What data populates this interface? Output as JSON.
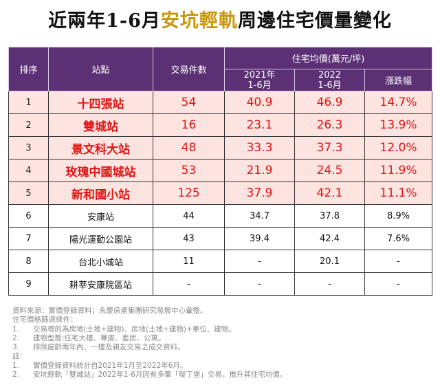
{
  "title": {
    "prefix": "近兩年1-6月",
    "highlight": "安坑輕軌",
    "suffix": "周邊住宅價量變化"
  },
  "table": {
    "headers": {
      "rank": "排序",
      "station": "站點",
      "transactions": "交易件數",
      "price_group": "住宅均價(萬元/坪)",
      "year1_a": "2021年",
      "year1_b": "1-6月",
      "year2_a": "2022",
      "year2_b": "1-6月",
      "change": "漲跌幅"
    },
    "rows": [
      {
        "rank": "1",
        "station": "十四張站",
        "count": "54",
        "p2021": "40.9",
        "p2022": "46.9",
        "change": "14.7%"
      },
      {
        "rank": "2",
        "station": "雙城站",
        "count": "16",
        "p2021": "23.1",
        "p2022": "26.3",
        "change": "13.9%"
      },
      {
        "rank": "3",
        "station": "景文科大站",
        "count": "48",
        "p2021": "33.3",
        "p2022": "37.3",
        "change": "12.0%"
      },
      {
        "rank": "4",
        "station": "玫瑰中國城站",
        "count": "53",
        "p2021": "21.9",
        "p2022": "24.5",
        "change": "11.9%"
      },
      {
        "rank": "5",
        "station": "新和國小站",
        "count": "125",
        "p2021": "37.9",
        "p2022": "42.1",
        "change": "11.1%"
      },
      {
        "rank": "6",
        "station": "安康站",
        "count": "44",
        "p2021": "34.7",
        "p2022": "37.8",
        "change": "8.9%"
      },
      {
        "rank": "7",
        "station": "陽光運動公園站",
        "count": "43",
        "p2021": "39.4",
        "p2022": "42.4",
        "change": "7.6%"
      },
      {
        "rank": "8",
        "station": "台北小城站",
        "count": "11",
        "p2021": "-",
        "p2022": "20.1",
        "change": "-"
      },
      {
        "rank": "9",
        "station": "耕莘安康院區站",
        "count": "-",
        "p2021": "-",
        "p2022": "-",
        "change": "-"
      }
    ]
  },
  "notes": {
    "source": "資料來源：實價登錄資料；永慶房產集團研究發展中心彙整。",
    "filter_title": "住宅價格篩選條件：",
    "filters": [
      {
        "n": "1.",
        "text": "交易標的為房地(土地+建物)、房地(土地+建物)+車位、建物。"
      },
      {
        "n": "2.",
        "text": "建物型態:住宅大樓、華廈、套房、公寓。"
      },
      {
        "n": "3.",
        "text": "排除屋齡兩年內、一樓及親友交易之成交資料。"
      }
    ],
    "note_title": "註:",
    "notes": [
      {
        "n": "1.",
        "text": "實價登錄資料統計自2021年1月至2022年6月。"
      },
      {
        "n": "2.",
        "text": "安坑輕軌「雙城站」2022年1-6月因有多筆「璦丁堡」交易，推升其住宅均價。"
      }
    ]
  }
}
